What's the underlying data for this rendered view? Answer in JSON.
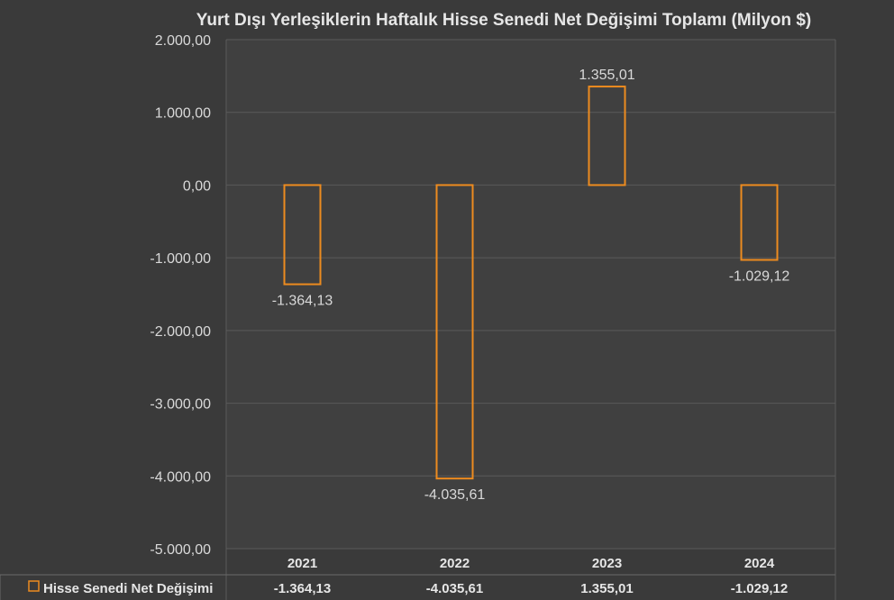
{
  "chart_data": {
    "type": "bar",
    "title": "Yurt Dışı Yerleşiklerin Haftalık Hisse Senedi Net Değişimi Toplamı (Milyon $)",
    "categories": [
      "2021",
      "2022",
      "2023",
      "2024"
    ],
    "series": [
      {
        "name": "Hisse Senedi Net Değişimi",
        "values": [
          -1364.13,
          -4035.61,
          1355.01,
          -1029.12
        ],
        "labels": [
          "-1.364,13",
          "-4.035,61",
          "1.355,01",
          "-1.029,12"
        ],
        "table_labels": [
          "-1.364,13",
          "-4.035,61",
          "1.355,01",
          "-1.029,12"
        ],
        "color": "#ed8b1f"
      }
    ],
    "ylim": [
      -5000,
      2000
    ],
    "yticks": [
      2000,
      1000,
      0,
      -1000,
      -2000,
      -3000,
      -4000,
      -5000
    ],
    "ytick_labels": [
      "2.000,00",
      "1.000,00",
      "0,00",
      "-1.000,00",
      "-2.000,00",
      "-3.000,00",
      "-4.000,00",
      "-5.000,00"
    ],
    "grid": true,
    "data_table": true,
    "xlabel": "",
    "ylabel": ""
  },
  "colors": {
    "background": "#3a3a3a",
    "plot_background": "#404040",
    "gridline": "#5a5a5a",
    "bar_outline": "#ed8b1f",
    "text": "#d9d9d9"
  }
}
